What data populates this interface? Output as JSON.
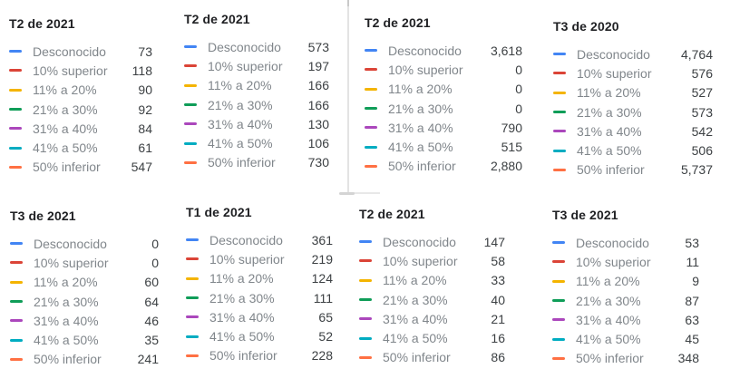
{
  "legend_labels": [
    "Desconocido",
    "10% superior",
    "11% a 20%",
    "21% a 30%",
    "31% a 40%",
    "41% a 50%",
    "50% inferior"
  ],
  "legend_colors": [
    "#4285F4",
    "#DB4437",
    "#F4B400",
    "#0F9D58",
    "#AB47BC",
    "#00ACC1",
    "#FF7043"
  ],
  "divider_color": "#E3E3E3",
  "panels": [
    {
      "title": "T2 de 2021",
      "values": [
        "73",
        "118",
        "90",
        "92",
        "84",
        "61",
        "547"
      ]
    },
    {
      "title": "T2 de 2021",
      "values": [
        "573",
        "197",
        "166",
        "166",
        "130",
        "106",
        "730"
      ]
    },
    {
      "title": "T2 de 2021",
      "values": [
        "3,618",
        "0",
        "0",
        "0",
        "790",
        "515",
        "2,880"
      ]
    },
    {
      "title": "T3 de 2020",
      "values": [
        "4,764",
        "576",
        "527",
        "573",
        "542",
        "506",
        "5,737"
      ]
    },
    {
      "title": "T3 de 2021",
      "values": [
        "0",
        "0",
        "60",
        "64",
        "46",
        "35",
        "241"
      ]
    },
    {
      "title": "T1 de 2021",
      "values": [
        "361",
        "219",
        "124",
        "111",
        "65",
        "52",
        "228"
      ]
    },
    {
      "title": "T2 de 2021",
      "values": [
        "147",
        "58",
        "33",
        "40",
        "21",
        "16",
        "86"
      ]
    },
    {
      "title": "T3 de 2021",
      "values": [
        "53",
        "11",
        "9",
        "87",
        "63",
        "45",
        "348"
      ]
    }
  ],
  "chart_data": [
    {
      "type": "table",
      "title": "T2 de 2021",
      "legend_position": "left",
      "legend_only": true,
      "categories": [
        "Desconocido",
        "10% superior",
        "11% a 20%",
        "21% a 30%",
        "31% a 40%",
        "41% a 50%",
        "50% inferior"
      ],
      "values": [
        73,
        118,
        90,
        92,
        84,
        61,
        547
      ],
      "colors": [
        "#4285F4",
        "#DB4437",
        "#F4B400",
        "#0F9D58",
        "#AB47BC",
        "#00ACC1",
        "#FF7043"
      ]
    },
    {
      "type": "table",
      "title": "T2 de 2021",
      "legend_position": "left",
      "legend_only": true,
      "categories": [
        "Desconocido",
        "10% superior",
        "11% a 20%",
        "21% a 30%",
        "31% a 40%",
        "41% a 50%",
        "50% inferior"
      ],
      "values": [
        573,
        197,
        166,
        166,
        130,
        106,
        730
      ],
      "colors": [
        "#4285F4",
        "#DB4437",
        "#F4B400",
        "#0F9D58",
        "#AB47BC",
        "#00ACC1",
        "#FF7043"
      ]
    },
    {
      "type": "table",
      "title": "T2 de 2021",
      "legend_position": "left",
      "legend_only": true,
      "categories": [
        "Desconocido",
        "10% superior",
        "11% a 20%",
        "21% a 30%",
        "31% a 40%",
        "41% a 50%",
        "50% inferior"
      ],
      "values": [
        3618,
        0,
        0,
        0,
        790,
        515,
        2880
      ],
      "colors": [
        "#4285F4",
        "#DB4437",
        "#F4B400",
        "#0F9D58",
        "#AB47BC",
        "#00ACC1",
        "#FF7043"
      ]
    },
    {
      "type": "table",
      "title": "T3 de 2020",
      "legend_position": "left",
      "legend_only": true,
      "categories": [
        "Desconocido",
        "10% superior",
        "11% a 20%",
        "21% a 30%",
        "31% a 40%",
        "41% a 50%",
        "50% inferior"
      ],
      "values": [
        4764,
        576,
        527,
        573,
        542,
        506,
        5737
      ],
      "colors": [
        "#4285F4",
        "#DB4437",
        "#F4B400",
        "#0F9D58",
        "#AB47BC",
        "#00ACC1",
        "#FF7043"
      ]
    },
    {
      "type": "table",
      "title": "T3 de 2021",
      "legend_position": "left",
      "legend_only": true,
      "categories": [
        "Desconocido",
        "10% superior",
        "11% a 20%",
        "21% a 30%",
        "31% a 40%",
        "41% a 50%",
        "50% inferior"
      ],
      "values": [
        0,
        0,
        60,
        64,
        46,
        35,
        241
      ],
      "colors": [
        "#4285F4",
        "#DB4437",
        "#F4B400",
        "#0F9D58",
        "#AB47BC",
        "#00ACC1",
        "#FF7043"
      ]
    },
    {
      "type": "table",
      "title": "T1 de 2021",
      "legend_position": "left",
      "legend_only": true,
      "categories": [
        "Desconocido",
        "10% superior",
        "11% a 20%",
        "21% a 30%",
        "31% a 40%",
        "41% a 50%",
        "50% inferior"
      ],
      "values": [
        361,
        219,
        124,
        111,
        65,
        52,
        228
      ],
      "colors": [
        "#4285F4",
        "#DB4437",
        "#F4B400",
        "#0F9D58",
        "#AB47BC",
        "#00ACC1",
        "#FF7043"
      ]
    },
    {
      "type": "table",
      "title": "T2 de 2021",
      "legend_position": "left",
      "legend_only": true,
      "categories": [
        "Desconocido",
        "10% superior",
        "11% a 20%",
        "21% a 30%",
        "31% a 40%",
        "41% a 50%",
        "50% inferior"
      ],
      "values": [
        147,
        58,
        33,
        40,
        21,
        16,
        86
      ],
      "colors": [
        "#4285F4",
        "#DB4437",
        "#F4B400",
        "#0F9D58",
        "#AB47BC",
        "#00ACC1",
        "#FF7043"
      ]
    },
    {
      "type": "table",
      "title": "T3 de 2021",
      "legend_position": "left",
      "legend_only": true,
      "categories": [
        "Desconocido",
        "10% superior",
        "11% a 20%",
        "21% a 30%",
        "31% a 40%",
        "41% a 50%",
        "50% inferior"
      ],
      "values": [
        53,
        11,
        9,
        87,
        63,
        45,
        348
      ],
      "colors": [
        "#4285F4",
        "#DB4437",
        "#F4B400",
        "#0F9D58",
        "#AB47BC",
        "#00ACC1",
        "#FF7043"
      ]
    }
  ]
}
